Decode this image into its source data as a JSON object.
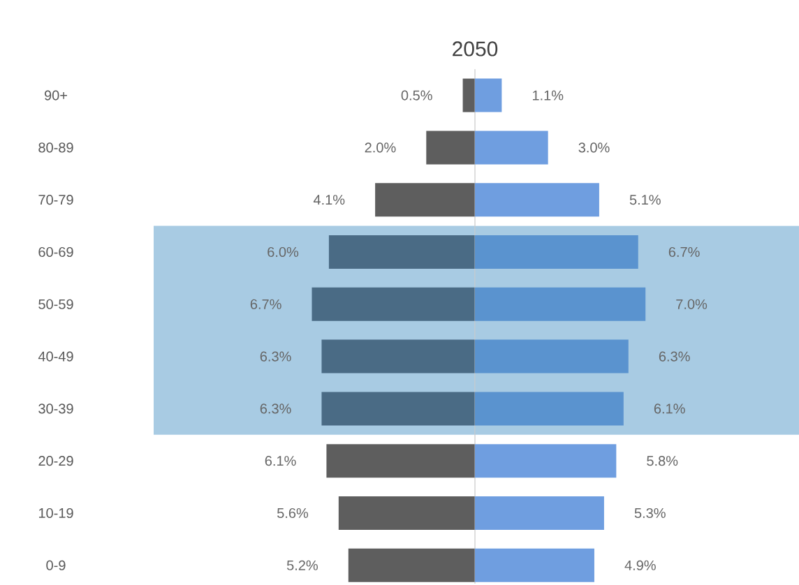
{
  "chart_data": [
    {
      "type": "bar",
      "orientation": "horizontal",
      "title": "2050",
      "tick_labels": "y",
      "xlim": [
        13.2,
        0
      ],
      "categories": [
        "90+",
        "80-89",
        "70-79",
        "60-69",
        "50-59",
        "40-49",
        "30-39",
        "20-29",
        "10-19",
        "0-9"
      ],
      "series": [
        {
          "colors": [
            "#5e5e5e",
            "#5e5e5e",
            "#5e5e5e",
            "#4a6b85",
            "#4a6b85",
            "#4a6b85",
            "#4a6b85",
            "#5e5e5e",
            "#5e5e5e",
            "#5e5e5e"
          ],
          "values": [
            0.5,
            2.0,
            4.1,
            6.0,
            6.7,
            6.3,
            6.3,
            6.1,
            5.6,
            5.2
          ],
          "value_labels": [
            "0.5%",
            "2.0%",
            "4.1%",
            "6.0%",
            "6.7%",
            "6.3%",
            "6.3%",
            "6.1%",
            "5.6%",
            "5.2%"
          ]
        }
      ],
      "bands": [
        {
          "axis": "y",
          "from": "30-39",
          "to": "60-69",
          "color": "#a8cbe3"
        }
      ]
    },
    {
      "type": "bar",
      "orientation": "horizontal",
      "tick_labels": false,
      "xlim": [
        0,
        13.3
      ],
      "categories": [
        "90+",
        "80-89",
        "70-79",
        "60-69",
        "50-59",
        "40-49",
        "30-39",
        "20-29",
        "10-19",
        "0-9"
      ],
      "series": [
        {
          "colors": [
            "#6f9ee0",
            "#6f9ee0",
            "#6f9ee0",
            "#5a93cf",
            "#5a93cf",
            "#5a93cf",
            "#5a93cf",
            "#6f9ee0",
            "#6f9ee0",
            "#6f9ee0"
          ],
          "values": [
            1.1,
            3.0,
            5.1,
            6.7,
            7.0,
            6.3,
            6.1,
            5.8,
            5.3,
            4.9
          ],
          "value_labels": [
            "1.1%",
            "3.0%",
            "5.1%",
            "6.7%",
            "7.0%",
            "6.3%",
            "6.1%",
            "5.8%",
            "5.3%",
            "4.9%"
          ]
        }
      ],
      "bands": [
        {
          "axis": "y",
          "from": "30-39",
          "to": "60-69",
          "color": "#a8cbe3"
        }
      ]
    }
  ]
}
